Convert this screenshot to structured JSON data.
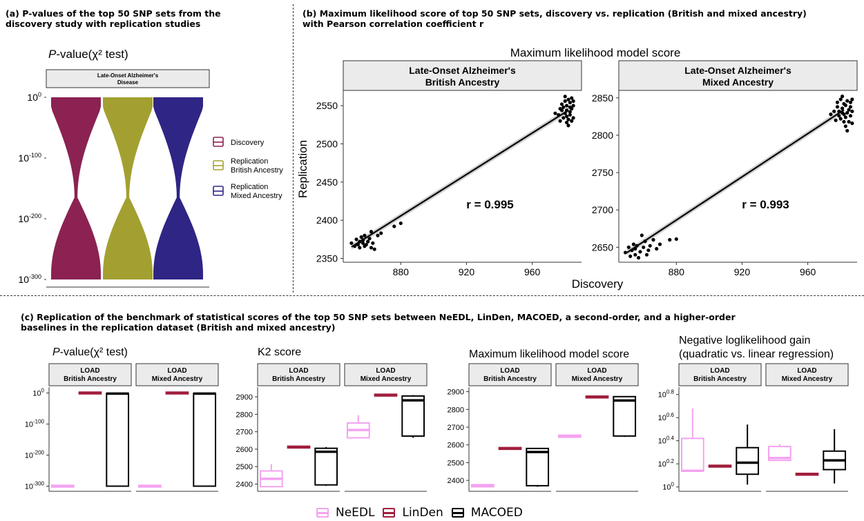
{
  "panel_a": {
    "title_line1": "(a) P-values of the top 50 SNP sets from the",
    "title_line2": "discovery study with replication studies",
    "plot_title_pre": "P",
    "plot_title_post": "-value(χ² test)",
    "strip_line1": "Late-Onset Alzheimer's",
    "strip_line2": "Disease",
    "ytick_base": [
      "10",
      "10",
      "10",
      "10"
    ],
    "ytick_exp": [
      "0",
      "-100",
      "-200",
      "-300"
    ],
    "legend": [
      {
        "label_line1": "Discovery",
        "label_line2": "",
        "color": "#8b2252"
      },
      {
        "label_line1": "Replication",
        "label_line2": "British Ancestry",
        "color": "#a3a031"
      },
      {
        "label_line1": "Replication",
        "label_line2": "Mixed Ancestry",
        "color": "#2f2585"
      }
    ]
  },
  "panel_b": {
    "title_line1": "(b) Maximum likelihood score of top 50 SNP sets, discovery vs. replication (British and mixed ancestry)",
    "title_line2": "with Pearson correlation coefficient r",
    "plot_title": "Maximum likelihood model score",
    "xlabel": "Discovery",
    "ylabel": "Replication"
  },
  "panel_c": {
    "title_line1": "(c) Replication of the benchmark of statistical scores of the top 50 SNP sets between NeEDL, LinDen, MACOED, a second-order, and a higher-order",
    "title_line2": "baselines in the replication dataset (British and mixed ancestry)",
    "subplot_titles": [
      "-value(χ² test)",
      "K2 score",
      "Maximum likelihood model score",
      "Negative loglikelihood gain",
      "(quadratic vs. linear regression)"
    ],
    "subplot1_title_pre": "P",
    "strip_labels": [
      "LOAD",
      "British Ancestry",
      "LOAD",
      "Mixed Ancestry"
    ],
    "legend": [
      {
        "label": "NeEDL",
        "color": "#f4a3f0"
      },
      {
        "label": "LinDen",
        "color": "#a01e3c"
      },
      {
        "label": "MACOED",
        "color": "#000000"
      }
    ]
  },
  "chart_data": [
    {
      "type": "violin",
      "title": "P-value(χ² test)",
      "facet": "Late-Onset Alzheimer's Disease",
      "yscale": "log10",
      "ylim_exponent": [
        -310,
        0
      ],
      "series": [
        {
          "name": "Discovery",
          "color": "#8b2252",
          "range_exponent": [
            -300,
            0
          ]
        },
        {
          "name": "Replication British Ancestry",
          "color": "#a3a031",
          "range_exponent": [
            -300,
            0
          ]
        },
        {
          "name": "Replication Mixed Ancestry",
          "color": "#2f2585",
          "range_exponent": [
            -300,
            0
          ]
        }
      ]
    },
    {
      "type": "scatter",
      "title": "Maximum likelihood model score",
      "facet": "Late-Onset Alzheimer's British Ancestry",
      "xlabel": "Discovery",
      "ylabel": "Replication",
      "xlim": [
        845,
        990
      ],
      "ylim": [
        2345,
        2570
      ],
      "xticks": [
        880,
        920,
        960
      ],
      "yticks": [
        2350,
        2400,
        2450,
        2500,
        2550
      ],
      "annotation": "r = 0.995",
      "fit_line": [
        [
          850,
          2365
        ],
        [
          982,
          2544
        ]
      ],
      "x": [
        850,
        852,
        853,
        854,
        855,
        855,
        856,
        857,
        857,
        858,
        858,
        859,
        860,
        861,
        862,
        862,
        863,
        864,
        866,
        868,
        876,
        880,
        974,
        976,
        977,
        977,
        978,
        978,
        979,
        979,
        980,
        980,
        980,
        981,
        981,
        981,
        981,
        982,
        982,
        982,
        983,
        983,
        983,
        983,
        984,
        984,
        984,
        985,
        985,
        985
      ],
      "y": [
        2370,
        2366,
        2375,
        2368,
        2372,
        2364,
        2378,
        2370,
        2374,
        2366,
        2380,
        2368,
        2372,
        2376,
        2364,
        2385,
        2370,
        2362,
        2380,
        2383,
        2392,
        2396,
        2540,
        2538,
        2546,
        2530,
        2552,
        2544,
        2534,
        2548,
        2556,
        2540,
        2562,
        2528,
        2536,
        2544,
        2550,
        2558,
        2532,
        2524,
        2542,
        2548,
        2554,
        2538,
        2530,
        2546,
        2560,
        2534,
        2550,
        2556
      ]
    },
    {
      "type": "scatter",
      "title": "Maximum likelihood model score",
      "facet": "Late-Onset Alzheimer's Mixed Ancestry",
      "xlabel": "Discovery",
      "ylabel": "Replication",
      "xlim": [
        845,
        990
      ],
      "ylim": [
        2630,
        2860
      ],
      "xticks": [
        880,
        920,
        960
      ],
      "yticks": [
        2650,
        2700,
        2750,
        2800,
        2850
      ],
      "annotation": "r = 0.993",
      "fit_line": [
        [
          850,
          2643
        ],
        [
          982,
          2834
        ]
      ],
      "x": [
        849,
        851,
        852,
        853,
        854,
        855,
        855,
        856,
        857,
        858,
        859,
        860,
        861,
        862,
        863,
        864,
        866,
        868,
        870,
        876,
        880,
        974,
        976,
        977,
        978,
        978,
        979,
        979,
        980,
        980,
        981,
        981,
        981,
        982,
        982,
        982,
        983,
        983,
        983,
        984,
        984,
        984,
        985,
        985,
        986,
        986,
        986,
        987,
        987,
        987
      ],
      "y": [
        2643,
        2650,
        2638,
        2646,
        2654,
        2640,
        2648,
        2652,
        2636,
        2644,
        2666,
        2650,
        2658,
        2640,
        2646,
        2652,
        2660,
        2648,
        2654,
        2660,
        2661,
        2828,
        2832,
        2820,
        2838,
        2844,
        2826,
        2832,
        2848,
        2822,
        2830,
        2836,
        2852,
        2818,
        2828,
        2842,
        2812,
        2824,
        2840,
        2806,
        2830,
        2846,
        2818,
        2834,
        2826,
        2838,
        2844,
        2816,
        2832,
        2848
      ]
    },
    {
      "type": "box",
      "title": "P-value(χ² test)",
      "yscale": "log10",
      "facets": [
        "LOAD British Ancestry",
        "LOAD Mixed Ancestry"
      ],
      "categories": [
        "NeEDL",
        "LinDen",
        "MACOED"
      ],
      "ylim_exponent": [
        -310,
        10
      ],
      "yticks_exponent": [
        0,
        -100,
        -200,
        -300
      ],
      "boxes_exponent": [
        [
          {
            "min": -300,
            "q1": -300,
            "median": -300,
            "q3": -300,
            "max": -300
          },
          {
            "min": 0,
            "q1": 0,
            "median": 0,
            "q3": 0,
            "max": 0
          },
          {
            "min": -300,
            "q1": -300,
            "median": -2,
            "q3": -1,
            "max": 0
          }
        ],
        [
          {
            "min": -300,
            "q1": -300,
            "median": -300,
            "q3": -300,
            "max": -300
          },
          {
            "min": 0,
            "q1": 0,
            "median": 0,
            "q3": 0,
            "max": 0
          },
          {
            "min": -300,
            "q1": -300,
            "median": -2,
            "q3": -1,
            "max": 0
          }
        ]
      ]
    },
    {
      "type": "box",
      "title": "K2 score",
      "facets": [
        "LOAD British Ancestry",
        "LOAD Mixed Ancestry"
      ],
      "categories": [
        "NeEDL",
        "LinDen",
        "MACOED"
      ],
      "ylim": [
        2370,
        2940
      ],
      "yticks": [
        2400,
        2500,
        2600,
        2700,
        2800,
        2900
      ],
      "boxes": [
        [
          {
            "min": 2385,
            "q1": 2385,
            "median": 2430,
            "q3": 2475,
            "max": 2515
          },
          {
            "min": 2612,
            "q1": 2612,
            "median": 2612,
            "q3": 2612,
            "max": 2612
          },
          {
            "min": 2390,
            "q1": 2395,
            "median": 2585,
            "q3": 2605,
            "max": 2612
          }
        ],
        [
          {
            "min": 2665,
            "q1": 2665,
            "median": 2710,
            "q3": 2750,
            "max": 2795
          },
          {
            "min": 2910,
            "q1": 2910,
            "median": 2910,
            "q3": 2910,
            "max": 2910
          },
          {
            "min": 2665,
            "q1": 2675,
            "median": 2880,
            "q3": 2905,
            "max": 2910
          }
        ]
      ]
    },
    {
      "type": "box",
      "title": "Maximum likelihood model score",
      "facets": [
        "LOAD British Ancestry",
        "LOAD Mixed Ancestry"
      ],
      "categories": [
        "NeEDL",
        "LinDen",
        "MACOED"
      ],
      "ylim": [
        2350,
        2910
      ],
      "yticks": [
        2400,
        2500,
        2600,
        2700,
        2800,
        2900
      ],
      "boxes": [
        [
          {
            "min": 2364,
            "q1": 2364,
            "median": 2370,
            "q3": 2376,
            "max": 2376
          },
          {
            "min": 2580,
            "q1": 2580,
            "median": 2580,
            "q3": 2580,
            "max": 2580
          },
          {
            "min": 2364,
            "q1": 2370,
            "median": 2560,
            "q3": 2580,
            "max": 2580
          }
        ],
        [
          {
            "min": 2642,
            "q1": 2642,
            "median": 2646,
            "q3": 2650,
            "max": 2650
          },
          {
            "min": 2870,
            "q1": 2870,
            "median": 2870,
            "q3": 2870,
            "max": 2870
          },
          {
            "min": 2645,
            "q1": 2650,
            "median": 2850,
            "q3": 2872,
            "max": 2875
          }
        ]
      ]
    },
    {
      "type": "box",
      "title": "Negative loglikelihood gain (quadratic vs. linear regression)",
      "yscale": "log10",
      "facets": [
        "LOAD British Ancestry",
        "LOAD Mixed Ancestry"
      ],
      "categories": [
        "NeEDL",
        "LinDen",
        "MACOED"
      ],
      "ylim_exponent": [
        -0.02,
        0.84
      ],
      "yticks_exponent": [
        0,
        0.2,
        0.4,
        0.6,
        0.8
      ],
      "boxes_exponent": [
        [
          {
            "min": 0.14,
            "q1": 0.14,
            "median": 0.14,
            "q3": 0.42,
            "max": 0.68
          },
          {
            "min": 0.18,
            "q1": 0.18,
            "median": 0.18,
            "q3": 0.18,
            "max": 0.18
          },
          {
            "min": 0.02,
            "q1": 0.11,
            "median": 0.21,
            "q3": 0.34,
            "max": 0.54
          }
        ],
        [
          {
            "min": 0.23,
            "q1": 0.23,
            "median": 0.25,
            "q3": 0.35,
            "max": 0.37
          },
          {
            "min": 0.11,
            "q1": 0.11,
            "median": 0.11,
            "q3": 0.11,
            "max": 0.11
          },
          {
            "min": 0.03,
            "q1": 0.15,
            "median": 0.23,
            "q3": 0.31,
            "max": 0.5
          }
        ]
      ]
    }
  ]
}
